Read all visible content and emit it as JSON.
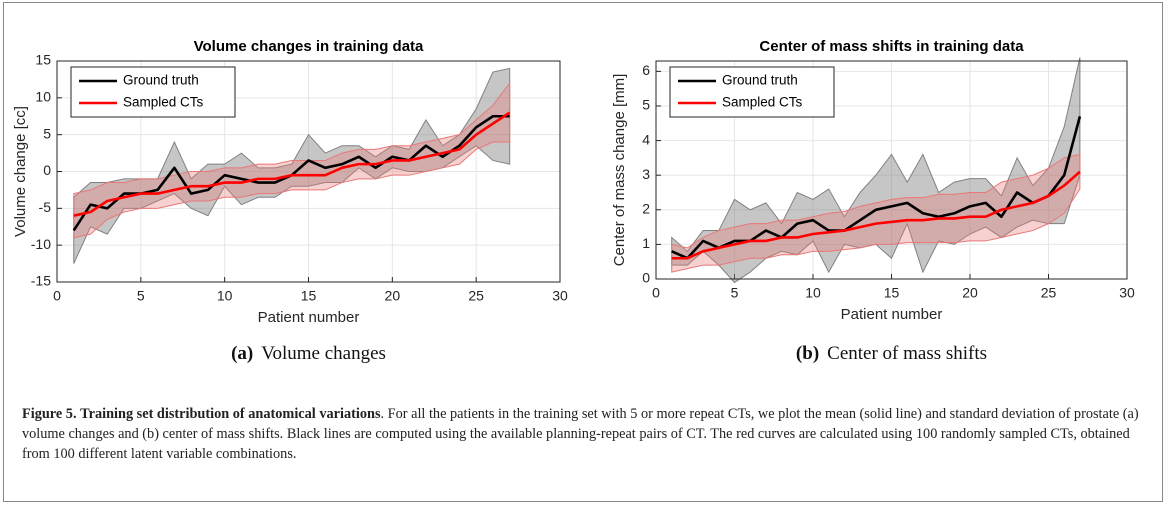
{
  "chart_data": [
    {
      "type": "line-band",
      "title": "Volume changes in training data",
      "x_label": "Patient number",
      "y_label": "Volume change [cc]",
      "x": [
        1,
        2,
        3,
        4,
        5,
        6,
        7,
        8,
        9,
        10,
        11,
        12,
        13,
        14,
        15,
        16,
        17,
        18,
        19,
        20,
        21,
        22,
        23,
        24,
        25,
        26,
        27
      ],
      "series": [
        {
          "name": "Ground truth",
          "color": "#000000",
          "band_color": "#808080",
          "values": [
            -8,
            -4.5,
            -5,
            -3,
            -3,
            -2.5,
            0.5,
            -3,
            -2.5,
            -0.5,
            -1,
            -1.5,
            -1.5,
            -0.5,
            1.5,
            0.5,
            1,
            2,
            0.5,
            2,
            1.5,
            3.5,
            2,
            3.5,
            6,
            7.5,
            7.5
          ],
          "std": [
            4.5,
            3,
            3.5,
            2,
            2,
            1.5,
            3.5,
            2,
            3.5,
            1.5,
            3.5,
            2,
            2,
            1.5,
            3.5,
            2,
            2.5,
            1.5,
            1.5,
            1.5,
            1.5,
            3.5,
            1.5,
            1.5,
            2.5,
            6,
            6.5
          ]
        },
        {
          "name": "Sampled CTs",
          "color": "#ff0000",
          "band_color": "#e87878",
          "values": [
            -6,
            -5.5,
            -4,
            -3.5,
            -3,
            -3,
            -2.5,
            -2,
            -2,
            -1.5,
            -1.5,
            -1,
            -1,
            -0.5,
            -0.5,
            -0.5,
            0.5,
            1,
            1,
            1.5,
            1.5,
            2,
            2.5,
            3,
            5,
            6.5,
            8
          ],
          "std": [
            3,
            3,
            2.5,
            2,
            2,
            2,
            2,
            2,
            2,
            2,
            2,
            2,
            2,
            2,
            2,
            2,
            2,
            2,
            2,
            2,
            2,
            2,
            2,
            2,
            2,
            2.5,
            4
          ]
        }
      ],
      "xlim": [
        0,
        30
      ],
      "xticks": [
        0,
        5,
        10,
        15,
        20,
        25,
        30
      ],
      "ylim": [
        -15,
        15
      ],
      "yticks": [
        -15,
        -10,
        -5,
        0,
        5,
        10,
        15
      ],
      "grid": true,
      "legend": "top-left",
      "subcaption_label": "(a)",
      "subcaption": "Volume changes"
    },
    {
      "type": "line-band",
      "title": "Center of mass shifts in training data",
      "x_label": "Patient number",
      "y_label": "Center of mass change [mm]",
      "x": [
        1,
        2,
        3,
        4,
        5,
        6,
        7,
        8,
        9,
        10,
        11,
        12,
        13,
        14,
        15,
        16,
        17,
        18,
        19,
        20,
        21,
        22,
        23,
        24,
        25,
        26,
        27
      ],
      "series": [
        {
          "name": "Ground truth",
          "color": "#000000",
          "band_color": "#808080",
          "values": [
            0.8,
            0.6,
            1.1,
            0.9,
            1.1,
            1.1,
            1.4,
            1.2,
            1.6,
            1.7,
            1.4,
            1.4,
            1.7,
            2,
            2.1,
            2.2,
            1.9,
            1.8,
            1.9,
            2.1,
            2.2,
            1.8,
            2.5,
            2.2,
            2.4,
            3,
            4.7
          ],
          "std": [
            0.4,
            0.2,
            0.3,
            0.5,
            1.2,
            0.9,
            0.8,
            0.4,
            0.9,
            0.6,
            1.2,
            0.4,
            0.8,
            1,
            1.5,
            0.6,
            1.7,
            0.7,
            0.9,
            0.8,
            0.7,
            0.6,
            1,
            0.5,
            0.8,
            1.4,
            1.7
          ]
        },
        {
          "name": "Sampled CTs",
          "color": "#ff0000",
          "band_color": "#e87878",
          "values": [
            0.6,
            0.6,
            0.8,
            0.9,
            1,
            1.1,
            1.1,
            1.2,
            1.2,
            1.3,
            1.35,
            1.4,
            1.5,
            1.6,
            1.65,
            1.7,
            1.7,
            1.75,
            1.75,
            1.8,
            1.8,
            2,
            2.1,
            2.2,
            2.4,
            2.7,
            3.1
          ],
          "std": [
            0.4,
            0.3,
            0.4,
            0.5,
            0.5,
            0.5,
            0.5,
            0.5,
            0.5,
            0.5,
            0.55,
            0.55,
            0.6,
            0.6,
            0.65,
            0.65,
            0.65,
            0.7,
            0.7,
            0.7,
            0.7,
            0.8,
            0.8,
            0.8,
            0.8,
            0.8,
            0.5
          ]
        }
      ],
      "xlim": [
        0,
        30
      ],
      "xticks": [
        0,
        5,
        10,
        15,
        20,
        25,
        30
      ],
      "ylim": [
        0,
        6.3
      ],
      "yticks": [
        0,
        1,
        2,
        3,
        4,
        5,
        6
      ],
      "grid": true,
      "legend": "top-left",
      "subcaption_label": "(b)",
      "subcaption": "Center of mass shifts"
    }
  ],
  "caption": {
    "label": "Figure 5.",
    "title": "Training set distribution of anatomical variations",
    "text": ". For all the patients in the training set with 5 or more repeat CTs, we plot the mean (solid line) and standard deviation of prostate (a) volume changes and (b) center of mass shifts. Black lines are computed using the available planning-repeat pairs of CT. The red curves are calculated using 100 randomly sampled CTs, obtained from 100 different latent variable combinations."
  }
}
